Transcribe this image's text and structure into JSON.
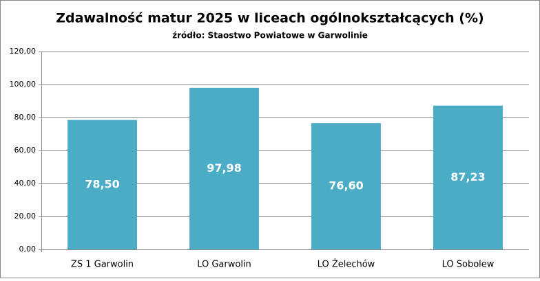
{
  "chart_data": {
    "type": "bar",
    "title": "Zdawalność matur 2025 w liceach ogólnokształcących (%)",
    "subtitle": "źródło: Staostwo Powiatowe w Garwolinie",
    "categories": [
      "ZS 1 Garwolin",
      "LO Garwolin",
      "LO Żelechów",
      "LO Sobolew"
    ],
    "values": [
      78.5,
      97.98,
      76.6,
      87.23
    ],
    "value_labels": [
      "78,50",
      "97,98",
      "76,60",
      "87,23"
    ],
    "color": "#4bacc6",
    "ylim": [
      0,
      120
    ],
    "yticks": [
      {
        "value": 0,
        "label": "0,00"
      },
      {
        "value": 20,
        "label": "20,00"
      },
      {
        "value": 40,
        "label": "40,00"
      },
      {
        "value": 60,
        "label": "60,00"
      },
      {
        "value": 80,
        "label": "80,00"
      },
      {
        "value": 100,
        "label": "100,00"
      },
      {
        "value": 120,
        "label": "120,00"
      }
    ],
    "grid": true
  }
}
